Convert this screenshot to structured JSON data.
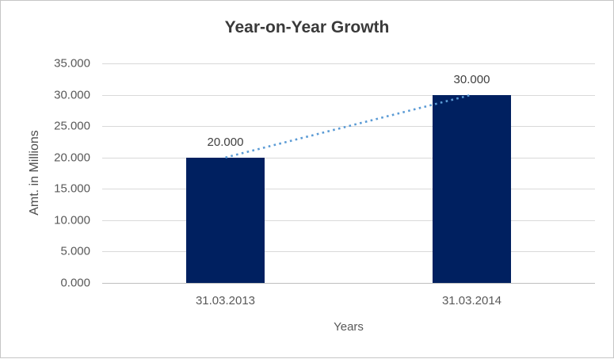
{
  "window": {
    "background": "#ffffff",
    "frame_border_color": "#c6c6c6"
  },
  "chart_data": {
    "type": "bar",
    "title": "Year-on-Year Growth",
    "xlabel": "Years",
    "ylabel": "Amt. in Millions",
    "categories": [
      "31.03.2013",
      "31.03.2014"
    ],
    "values": [
      20000,
      30000
    ],
    "value_labels": [
      "20.000",
      "30.000"
    ],
    "ylim": [
      0,
      35000
    ],
    "ytick_step": 5000,
    "ytick_values": [
      0,
      5000,
      10000,
      15000,
      20000,
      25000,
      30000,
      35000
    ],
    "ytick_labels": [
      "0.000",
      "5.000",
      "10.000",
      "15.000",
      "20.000",
      "25.000",
      "30.000",
      "35.000"
    ],
    "grid": true,
    "legend": "none",
    "bar_color": "#002060",
    "gridline_color": "#d9d9d9",
    "axis_line_color": "#bfbfbf",
    "trendline": {
      "style": "dotted",
      "color": "#5b9bd5",
      "from_category": 0,
      "to_category": 1
    }
  }
}
